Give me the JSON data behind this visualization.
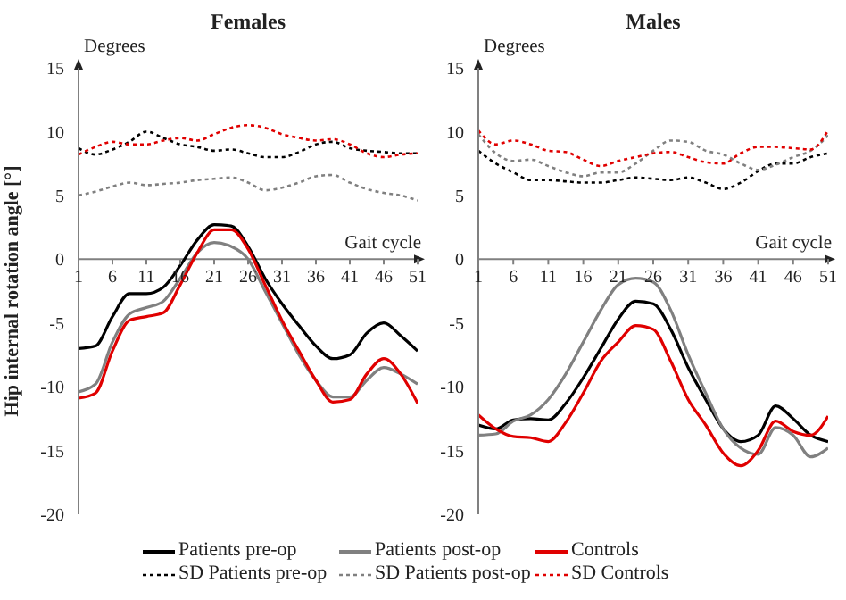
{
  "chart_data": [
    {
      "type": "line",
      "title": "Females",
      "xlabel": "Gait cycle",
      "ylabel": "Hip internal rotation angle [°]",
      "annotations": [
        "Degrees"
      ],
      "legend": "bottom",
      "grid": false,
      "marker": "none",
      "x": [
        1,
        3.5,
        6,
        8.5,
        11,
        13.5,
        16,
        18.5,
        21,
        23.5,
        26,
        28.5,
        31,
        33.5,
        36,
        38.5,
        41,
        43.5,
        46,
        48.5,
        51
      ],
      "xlim": [
        1,
        51
      ],
      "xticks": [
        1,
        6,
        11,
        16,
        21,
        26,
        31,
        36,
        41,
        46,
        51
      ],
      "ylim": [
        -20,
        15
      ],
      "yticks": [
        -20,
        -15,
        -10,
        -5,
        0,
        5,
        10,
        15
      ],
      "series": [
        {
          "name": "Patients pre-op",
          "color": "#000000",
          "line_style": "solid",
          "values": [
            -7,
            -6.8,
            -4.5,
            -2.7,
            -2.7,
            -2.2,
            -0.5,
            1.5,
            2.7,
            2.6,
            1.0,
            -1.5,
            -3.5,
            -5.2,
            -6.8,
            -7.8,
            -7.5,
            -5.8,
            -5,
            -6,
            -7.2
          ]
        },
        {
          "name": "Patients post-op",
          "color": "#808080",
          "line_style": "solid",
          "values": [
            -10.4,
            -9.8,
            -6.5,
            -4.3,
            -3.8,
            -3.3,
            -1.5,
            0.5,
            1.3,
            1.0,
            0,
            -2.5,
            -5,
            -7.5,
            -9.5,
            -10.8,
            -10.8,
            -9.5,
            -8.5,
            -9,
            -9.8
          ]
        },
        {
          "name": "Controls",
          "color": "#e00000",
          "line_style": "solid",
          "values": [
            -10.9,
            -10.5,
            -7.2,
            -4.8,
            -4.5,
            -4.2,
            -2,
            0.5,
            2.3,
            2.3,
            0.8,
            -2,
            -4.8,
            -7.2,
            -9.5,
            -11.2,
            -11,
            -9,
            -7.8,
            -9,
            -11.3
          ]
        },
        {
          "name": "SD Patients pre-op",
          "color": "#000000",
          "line_style": "dotted",
          "values": [
            8.7,
            8.2,
            8.6,
            9.2,
            10,
            9.5,
            9,
            8.8,
            8.5,
            8.6,
            8.3,
            8.0,
            8.0,
            8.4,
            9.0,
            9.2,
            8.7,
            8.5,
            8.4,
            8.3,
            8.3
          ]
        },
        {
          "name": "SD Patients post-op",
          "color": "#808080",
          "line_style": "dotted",
          "values": [
            5,
            5.3,
            5.7,
            6,
            5.8,
            5.9,
            6,
            6.2,
            6.3,
            6.4,
            6,
            5.4,
            5.6,
            6,
            6.5,
            6.6,
            6,
            5.5,
            5.2,
            5.0,
            4.6
          ]
        },
        {
          "name": "SD Controls",
          "color": "#e00000",
          "line_style": "dotted",
          "values": [
            8.2,
            8.8,
            9.2,
            9.0,
            9.0,
            9.3,
            9.5,
            9.3,
            9.8,
            10.3,
            10.5,
            10.3,
            9.8,
            9.5,
            9.3,
            9.4,
            9.0,
            8.3,
            8.0,
            8.2,
            8.3
          ]
        }
      ]
    },
    {
      "type": "line",
      "title": "Males",
      "xlabel": "Gait cycle",
      "annotations": [
        "Degrees"
      ],
      "grid": false,
      "marker": "none",
      "x": [
        1,
        3.5,
        6,
        8.5,
        11,
        13.5,
        16,
        18.5,
        21,
        23.5,
        26,
        28.5,
        31,
        33.5,
        36,
        38.5,
        41,
        43.5,
        46,
        48.5,
        51
      ],
      "xlim": [
        1,
        51
      ],
      "xticks": [
        1,
        6,
        11,
        16,
        21,
        26,
        31,
        36,
        41,
        46,
        51
      ],
      "ylim": [
        -20,
        15
      ],
      "yticks": [
        -20,
        -15,
        -10,
        -5,
        0,
        5,
        10,
        15
      ],
      "series": [
        {
          "color": "#000000",
          "line_style": "solid",
          "values": [
            -13,
            -13.3,
            -12.6,
            -12.5,
            -12.6,
            -11.3,
            -9.3,
            -7,
            -4.7,
            -3.3,
            -3.5,
            -5.5,
            -8.5,
            -11,
            -13.3,
            -14.3,
            -13.8,
            -11.5,
            -12.5,
            -13.8,
            -14.3
          ]
        },
        {
          "color": "#808080",
          "line_style": "solid",
          "values": [
            -13.8,
            -13.7,
            -12.7,
            -12.2,
            -11,
            -9,
            -6.5,
            -4,
            -2,
            -1.5,
            -1.8,
            -4,
            -7.5,
            -10.5,
            -13.3,
            -14.8,
            -15.3,
            -13.2,
            -13.8,
            -15.5,
            -14.8
          ]
        },
        {
          "color": "#e00000",
          "line_style": "solid",
          "values": [
            -12.2,
            -13.3,
            -13.9,
            -14.0,
            -14.3,
            -12.8,
            -10.5,
            -8,
            -6.5,
            -5.2,
            -5.5,
            -8,
            -11,
            -13,
            -15.2,
            -16.2,
            -15,
            -12.7,
            -13.5,
            -13.8,
            -12.3
          ]
        },
        {
          "color": "#000000",
          "line_style": "dotted",
          "values": [
            8.5,
            7.5,
            6.8,
            6.2,
            6.2,
            6.1,
            6.0,
            6.0,
            6.2,
            6.4,
            6.3,
            6.2,
            6.4,
            6.0,
            5.5,
            6.0,
            6.9,
            7.5,
            7.5,
            8.0,
            8.3
          ]
        },
        {
          "color": "#808080",
          "line_style": "dotted",
          "values": [
            9.8,
            8.3,
            7.7,
            7.8,
            7.3,
            6.8,
            6.5,
            6.8,
            6.8,
            7.5,
            8.5,
            9.3,
            9.2,
            8.5,
            8.2,
            7.5,
            7.0,
            7.4,
            8.0,
            8.5,
            9.7
          ]
        },
        {
          "color": "#e00000",
          "line_style": "dotted",
          "values": [
            10.1,
            9.0,
            9.3,
            9.0,
            8.5,
            8.4,
            7.8,
            7.3,
            7.7,
            8.0,
            8.3,
            8.4,
            8.0,
            7.6,
            7.5,
            8.3,
            8.8,
            8.8,
            8.7,
            8.6,
            10.1
          ]
        }
      ]
    }
  ]
}
